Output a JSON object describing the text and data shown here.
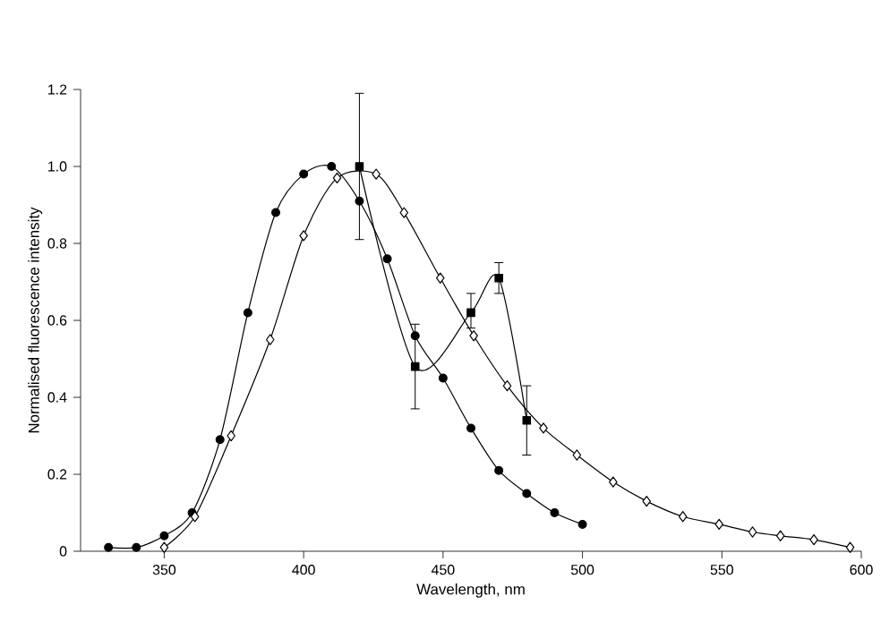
{
  "chart_data": {
    "type": "line",
    "xlabel": "Wavelength, nm",
    "ylabel": "Normalised fluorescence intensity",
    "xlim": [
      320,
      600
    ],
    "ylim": [
      0,
      1.2
    ],
    "xticks": [
      350,
      400,
      450,
      500,
      550,
      600
    ],
    "yticks": [
      0,
      {
        "value": 0.2,
        "label": "0.2"
      },
      {
        "value": 0.4,
        "label": "0.4"
      },
      {
        "value": 0.6,
        "label": "0.6"
      },
      {
        "value": 0.8,
        "label": "0.8"
      },
      {
        "value": 1,
        "label": "1.0"
      },
      {
        "value": 1.2,
        "label": "1.2"
      }
    ],
    "line_style": "solid",
    "series": [
      {
        "color": "#000000",
        "marker": "circle",
        "x": [
          330,
          340,
          350,
          360,
          370,
          380,
          390,
          400,
          410,
          420,
          430,
          440,
          450,
          460,
          470,
          480,
          490,
          500
        ],
        "values": [
          0.01,
          0.01,
          0.04,
          0.1,
          0.29,
          0.62,
          0.88,
          0.98,
          1.0,
          0.91,
          0.76,
          0.56,
          0.45,
          0.32,
          0.21,
          0.15,
          0.1,
          0.07
        ]
      },
      {
        "color": "#000000",
        "marker": "diamond",
        "x": [
          350,
          361,
          374,
          388,
          400,
          412,
          426,
          436,
          449,
          461,
          473,
          486,
          498,
          511,
          523,
          536,
          549,
          561,
          571,
          583,
          596
        ],
        "values": [
          0.01,
          0.09,
          0.3,
          0.55,
          0.82,
          0.97,
          0.98,
          0.88,
          0.71,
          0.56,
          0.43,
          0.32,
          0.25,
          0.18,
          0.13,
          0.09,
          0.07,
          0.05,
          0.04,
          0.03,
          0.01
        ]
      },
      {
        "color": "#000000",
        "marker": "square",
        "x": [
          420,
          440,
          460,
          470,
          480
        ],
        "values": [
          1.0,
          0.48,
          0.62,
          0.71,
          0.34
        ],
        "errors": [
          [
            0.81,
            1.19
          ],
          [
            0.37,
            0.59
          ],
          [
            0.58,
            0.67
          ],
          [
            0.67,
            0.75
          ],
          [
            0.25,
            0.43
          ]
        ]
      }
    ]
  }
}
